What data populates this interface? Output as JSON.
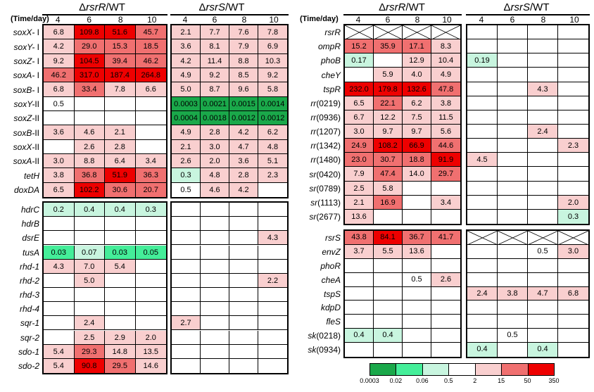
{
  "colors": {
    "deep_green": "#1aa84a",
    "green": "#44ee99",
    "light_green": "#c8f5df",
    "white": "#ffffff",
    "pink": "#f9cfcf",
    "mid_red": "#f07070",
    "red": "#ee0000",
    "border": "#000000"
  },
  "headers": {
    "rsrR": {
      "prefix": "Δ",
      "italic": "rsrR",
      "suffix": "/WT"
    },
    "rsrS": {
      "prefix": "Δ",
      "italic": "rsrS",
      "suffix": "/WT"
    }
  },
  "time_label": "(Time/day)",
  "days": [
    "4",
    "6",
    "8",
    "10"
  ],
  "legend": {
    "colors": [
      "#1aa84a",
      "#44ee99",
      "#c8f5df",
      "#ffffff",
      "#f9cfcf",
      "#f07070",
      "#ee0000"
    ],
    "ticks": [
      "0.0003",
      "0.02",
      "0.06",
      "0.5",
      "2",
      "15",
      "50",
      "350"
    ]
  },
  "left_top": [
    {
      "name": "soxX-",
      "roman": " I",
      "rsrR": [
        "6.8",
        "109.8",
        "51.6",
        "45.7"
      ],
      "rsrS": [
        "2.1",
        "7.7",
        "7.6",
        "7.8"
      ]
    },
    {
      "name": "soxY-",
      "roman": " I",
      "rsrR": [
        "4.2",
        "29.0",
        "15.3",
        "18.5"
      ],
      "rsrS": [
        "3.6",
        "8.1",
        "7.9",
        "6.9"
      ]
    },
    {
      "name": "soxZ-",
      "roman": " I",
      "rsrR": [
        "9.2",
        "104.5",
        "39.4",
        "46.2"
      ],
      "rsrS": [
        "4.2",
        "11.4",
        "8.8",
        "10.3"
      ]
    },
    {
      "name": "soxA-",
      "roman": " I",
      "rsrR": [
        "46.2",
        "317.0",
        "187.4",
        "264.8"
      ],
      "rsrS": [
        "4.9",
        "9.2",
        "8.5",
        "9.2"
      ]
    },
    {
      "name": "soxB-",
      "roman": " I",
      "rsrR": [
        "6.8",
        "33.4",
        "7.8",
        "6.6"
      ],
      "rsrS": [
        "5.0",
        "8.7",
        "9.6",
        "5.8"
      ]
    },
    {
      "name": "soxY-",
      "roman": "II",
      "rsrR": [
        "0.5",
        "",
        "",
        ""
      ],
      "rsrS": [
        "0.0003",
        "0.0021",
        "0.0015",
        "0.0014"
      ]
    },
    {
      "name": "soxZ-",
      "roman": "II",
      "rsrR": [
        "",
        "",
        "",
        ""
      ],
      "rsrS": [
        "0.0004",
        "0.0018",
        "0.0012",
        "0.0012"
      ]
    },
    {
      "name": "soxB-",
      "roman": "II",
      "rsrR": [
        "3.6",
        "4.6",
        "2.1",
        ""
      ],
      "rsrS": [
        "4.9",
        "2.8",
        "4.2",
        "6.2"
      ]
    },
    {
      "name": "soxX-",
      "roman": "II",
      "rsrR": [
        "",
        "2.6",
        "2.8",
        ""
      ],
      "rsrS": [
        "2.1",
        "3.0",
        "4.7",
        "4.8"
      ]
    },
    {
      "name": "soxA-",
      "roman": "II",
      "rsrR": [
        "3.0",
        "8.8",
        "6.4",
        "3.4"
      ],
      "rsrS": [
        "2.6",
        "2.0",
        "3.6",
        "5.1"
      ]
    },
    {
      "name": "tetH",
      "roman": "",
      "rsrR": [
        "3.8",
        "36.8",
        "51.9",
        "36.3"
      ],
      "rsrS": [
        "0.3",
        "4.8",
        "2.8",
        "2.3"
      ]
    },
    {
      "name": "doxDA",
      "roman": "",
      "rsrR": [
        "6.5",
        "102.2",
        "30.6",
        "20.7"
      ],
      "rsrS": [
        "0.5",
        "4.6",
        "4.2",
        ""
      ]
    }
  ],
  "left_bottom": [
    {
      "name": "hdrC",
      "roman": "",
      "rsrR": [
        "0.2",
        "0.4",
        "0.4",
        "0.3"
      ],
      "rsrS": [
        "",
        "",
        "",
        ""
      ]
    },
    {
      "name": "hdrB",
      "roman": "",
      "rsrR": [
        "",
        "",
        "",
        ""
      ],
      "rsrS": [
        "",
        "",
        "",
        ""
      ]
    },
    {
      "name": "dsrE",
      "roman": "",
      "rsrR": [
        "",
        "",
        "",
        ""
      ],
      "rsrS": [
        "",
        "",
        "",
        "4.3"
      ]
    },
    {
      "name": "tusA",
      "roman": "",
      "rsrR": [
        "0.03",
        "0.07",
        "0.03",
        "0.05"
      ],
      "rsrS": [
        "",
        "",
        "",
        ""
      ]
    },
    {
      "name": "rhd-1",
      "roman": "",
      "rsrR": [
        "4.3",
        "7.0",
        "5.4",
        ""
      ],
      "rsrS": [
        "",
        "",
        "",
        ""
      ]
    },
    {
      "name": "rhd-2",
      "roman": "",
      "rsrR": [
        "",
        "5.0",
        "",
        ""
      ],
      "rsrS": [
        "",
        "",
        "",
        "2.2"
      ]
    },
    {
      "name": "rhd-3",
      "roman": "",
      "rsrR": [
        "",
        "",
        "",
        ""
      ],
      "rsrS": [
        "",
        "",
        "",
        ""
      ]
    },
    {
      "name": "rhd-4",
      "roman": "",
      "rsrR": [
        "",
        "",
        "",
        ""
      ],
      "rsrS": [
        "",
        "",
        "",
        ""
      ]
    },
    {
      "name": "sqr-1",
      "roman": "",
      "rsrR": [
        "",
        "2.4",
        "",
        ""
      ],
      "rsrS": [
        "2.7",
        "",
        "",
        ""
      ]
    },
    {
      "name": "sqr-2",
      "roman": "",
      "rsrR": [
        "",
        "2.5",
        "2.9",
        "2.0"
      ],
      "rsrS": [
        "",
        "",
        "",
        ""
      ]
    },
    {
      "name": "sdo-1",
      "roman": "",
      "rsrR": [
        "5.4",
        "29.3",
        "14.8",
        "13.5"
      ],
      "rsrS": [
        "",
        "",
        "",
        ""
      ]
    },
    {
      "name": "sdo-2",
      "roman": "",
      "rsrR": [
        "5.4",
        "90.8",
        "29.5",
        "14.6"
      ],
      "rsrS": [
        "",
        "",
        "",
        ""
      ]
    }
  ],
  "right_top": [
    {
      "name": "rsrR",
      "rsrR": [
        "X",
        "X",
        "X",
        "X"
      ],
      "rsrS": [
        "",
        "",
        "",
        ""
      ]
    },
    {
      "name": "ompR",
      "rsrR": [
        "15.2",
        "35.9",
        "17.1",
        "8.3"
      ],
      "rsrS": [
        "",
        "",
        "",
        ""
      ]
    },
    {
      "name": "phoB",
      "rsrR": [
        "0.17",
        "",
        "12.9",
        "10.4"
      ],
      "rsrS": [
        "0.19",
        "",
        "",
        ""
      ]
    },
    {
      "name": "cheY",
      "rsrR": [
        "",
        "5.9",
        "4.0",
        "4.9"
      ],
      "rsrS": [
        "",
        "",
        "",
        ""
      ]
    },
    {
      "name": "tspR",
      "rsrR": [
        "232.0",
        "179.8",
        "132.6",
        "47.8"
      ],
      "rsrS": [
        "",
        "",
        "4.3",
        ""
      ]
    },
    {
      "name": "rr",
      "suffix": "(0219)",
      "rsrR": [
        "6.5",
        "22.1",
        "6.2",
        "3.8"
      ],
      "rsrS": [
        "",
        "",
        "",
        ""
      ]
    },
    {
      "name": "rr",
      "suffix": "(0936)",
      "rsrR": [
        "6.7",
        "12.2",
        "7.5",
        "11.5"
      ],
      "rsrS": [
        "",
        "",
        "",
        ""
      ]
    },
    {
      "name": "rr",
      "suffix": "(1207)",
      "rsrR": [
        "3.0",
        "9.7",
        "9.7",
        "5.6"
      ],
      "rsrS": [
        "",
        "",
        "2.4",
        ""
      ]
    },
    {
      "name": "rr",
      "suffix": "(1342)",
      "rsrR": [
        "24.9",
        "108.2",
        "66.9",
        "44.6"
      ],
      "rsrS": [
        "",
        "",
        "",
        "2.3"
      ]
    },
    {
      "name": "rr",
      "suffix": "(1480)",
      "rsrR": [
        "23.0",
        "30.7",
        "18.8",
        "91.9"
      ],
      "rsrS": [
        "4.5",
        "",
        "",
        ""
      ]
    },
    {
      "name": "sr",
      "suffix": "(0420)",
      "rsrR": [
        "7.9",
        "47.4",
        "14.0",
        "29.7"
      ],
      "rsrS": [
        "",
        "",
        "",
        ""
      ]
    },
    {
      "name": "sr",
      "suffix": "(0789)",
      "rsrR": [
        "2.5",
        "5.8",
        "",
        ""
      ],
      "rsrS": [
        "",
        "",
        "",
        ""
      ]
    },
    {
      "name": "sr",
      "suffix": "(1113)",
      "rsrR": [
        "2.1",
        "16.9",
        "",
        "3.4"
      ],
      "rsrS": [
        "",
        "",
        "",
        "2.0"
      ]
    },
    {
      "name": "sr",
      "suffix": "(2677)",
      "rsrR": [
        "13.6",
        "",
        "",
        ""
      ],
      "rsrS": [
        "",
        "",
        "",
        "0.3"
      ]
    }
  ],
  "right_bottom": [
    {
      "name": "rsrS",
      "rsrR": [
        "43.8",
        "84.1",
        "36.7",
        "41.7"
      ],
      "rsrS": [
        "X",
        "X",
        "X",
        "X"
      ]
    },
    {
      "name": "envZ",
      "rsrR": [
        "3.7",
        "5.5",
        "13.6",
        ""
      ],
      "rsrS": [
        "",
        "",
        "0.5",
        "3.0"
      ]
    },
    {
      "name": "phoR",
      "rsrR": [
        "",
        "",
        "",
        ""
      ],
      "rsrS": [
        "",
        "",
        "",
        ""
      ]
    },
    {
      "name": "cheA",
      "rsrR": [
        "",
        "",
        "0.5",
        "2.6"
      ],
      "rsrS": [
        "",
        "",
        "",
        ""
      ]
    },
    {
      "name": "tspS",
      "rsrR": [
        "",
        "",
        "",
        ""
      ],
      "rsrS": [
        "2.4",
        "3.8",
        "4.7",
        "6.8"
      ]
    },
    {
      "name": "kdpD",
      "rsrR": [
        "",
        "",
        "",
        ""
      ],
      "rsrS": [
        "",
        "",
        "",
        ""
      ]
    },
    {
      "name": "fleS",
      "rsrR": [
        "",
        "",
        "",
        ""
      ],
      "rsrS": [
        "",
        "",
        "",
        ""
      ]
    },
    {
      "name": "sk",
      "suffix": "(0218)",
      "rsrR": [
        "0.4",
        "0.4",
        "",
        ""
      ],
      "rsrS": [
        "",
        "0.5",
        "",
        ""
      ]
    },
    {
      "name": "sk",
      "suffix": "(0934)",
      "rsrR": [
        "",
        "",
        "",
        ""
      ],
      "rsrS": [
        "0.4",
        "",
        "0.4",
        ""
      ]
    }
  ]
}
